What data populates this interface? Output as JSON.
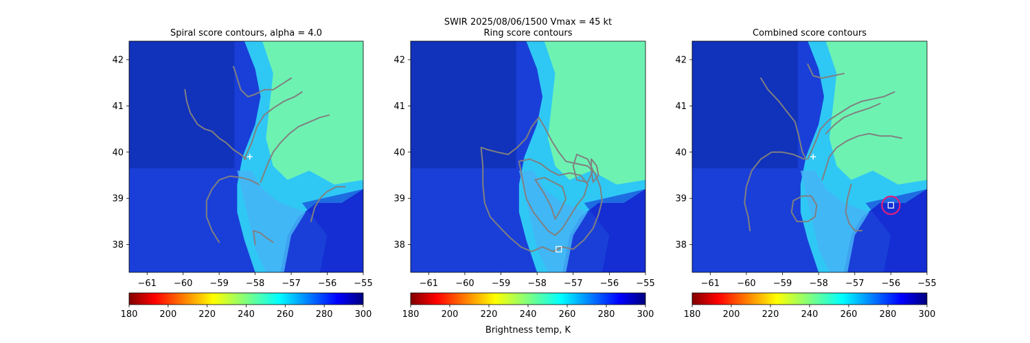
{
  "figure": {
    "suptitle_line1": "SWIR  2025/08/06/1500    Vmax = 45 kt",
    "colorbar_label": "Brightness temp, K"
  },
  "chart_data": [
    {
      "type": "heatmap",
      "title": "Spiral score contours, alpha =  4.0",
      "xlim": [
        -61.5,
        -55
      ],
      "ylim": [
        37.4,
        42.4
      ],
      "xticks": [
        -61,
        -60,
        -59,
        -58,
        -57,
        -56,
        -55
      ],
      "yticks": [
        38,
        39,
        40,
        41,
        42
      ],
      "grid": false,
      "colormap": "jet_reversed",
      "color_range": [
        180,
        300
      ],
      "colorbar_ticks": [
        180,
        200,
        220,
        240,
        260,
        280,
        300
      ],
      "center_marker": {
        "symbol": "plus",
        "color": "#ffffff",
        "lon": -58.15,
        "lat": 39.9
      },
      "contours_color": "#808080",
      "contours": [
        [
          [
            -59.95,
            41.35
          ],
          [
            -59.9,
            41.1
          ],
          [
            -59.8,
            40.85
          ],
          [
            -59.6,
            40.6
          ],
          [
            -59.4,
            40.5
          ],
          [
            -59.2,
            40.45
          ],
          [
            -59.0,
            40.3
          ],
          [
            -58.8,
            40.2
          ],
          [
            -58.6,
            40.05
          ],
          [
            -58.4,
            39.95
          ],
          [
            -58.25,
            39.85
          ]
        ],
        [
          [
            -58.6,
            41.85
          ],
          [
            -58.5,
            41.6
          ],
          [
            -58.4,
            41.35
          ],
          [
            -58.2,
            41.2
          ],
          [
            -58.0,
            41.25
          ],
          [
            -57.75,
            41.35
          ],
          [
            -57.5,
            41.35
          ],
          [
            -57.2,
            41.5
          ],
          [
            -57.0,
            41.6
          ]
        ],
        [
          [
            -58.3,
            39.85
          ],
          [
            -58.1,
            40.2
          ],
          [
            -57.95,
            40.55
          ],
          [
            -57.75,
            40.8
          ],
          [
            -57.5,
            40.95
          ],
          [
            -57.2,
            41.1
          ],
          [
            -56.9,
            41.2
          ],
          [
            -56.7,
            41.3
          ]
        ],
        [
          [
            -57.85,
            39.35
          ],
          [
            -57.65,
            39.75
          ],
          [
            -57.5,
            40.0
          ],
          [
            -57.3,
            40.2
          ],
          [
            -57.05,
            40.4
          ],
          [
            -56.8,
            40.55
          ],
          [
            -56.5,
            40.65
          ],
          [
            -56.2,
            40.75
          ],
          [
            -55.95,
            40.8
          ]
        ],
        [
          [
            -57.9,
            39.3
          ],
          [
            -58.15,
            39.4
          ],
          [
            -58.4,
            39.45
          ],
          [
            -58.7,
            39.48
          ],
          [
            -59.0,
            39.4
          ],
          [
            -59.2,
            39.2
          ],
          [
            -59.35,
            38.95
          ],
          [
            -59.35,
            38.6
          ],
          [
            -59.2,
            38.3
          ],
          [
            -59.0,
            38.05
          ]
        ],
        [
          [
            -56.45,
            38.5
          ],
          [
            -56.35,
            38.8
          ],
          [
            -56.2,
            39.0
          ],
          [
            -56.0,
            39.15
          ],
          [
            -55.75,
            39.25
          ],
          [
            -55.5,
            39.25
          ]
        ],
        [
          [
            -58.0,
            38.0
          ],
          [
            -58.05,
            38.3
          ],
          [
            -57.85,
            38.25
          ],
          [
            -57.7,
            38.15
          ],
          [
            -57.5,
            38.05
          ]
        ]
      ]
    },
    {
      "type": "heatmap",
      "title": "Ring score contours",
      "xlim": [
        -61.5,
        -55
      ],
      "ylim": [
        37.4,
        42.4
      ],
      "xticks": [
        -61,
        -60,
        -59,
        -58,
        -57,
        -56,
        -55
      ],
      "yticks": [
        38,
        39,
        40,
        41,
        42
      ],
      "grid": false,
      "colormap": "jet_reversed",
      "color_range": [
        180,
        300
      ],
      "colorbar_ticks": [
        180,
        200,
        220,
        240,
        260,
        280,
        300
      ],
      "center_marker": {
        "symbol": "square",
        "color": "#ffffff",
        "lon": -57.4,
        "lat": 37.9
      },
      "contours_color": "#808080",
      "contours": [
        [
          [
            -59.55,
            40.1
          ],
          [
            -59.5,
            39.7
          ],
          [
            -59.5,
            39.3
          ],
          [
            -59.45,
            38.9
          ],
          [
            -59.3,
            38.6
          ],
          [
            -59.0,
            38.35
          ],
          [
            -58.75,
            38.15
          ],
          [
            -58.45,
            37.95
          ],
          [
            -58.15,
            37.85
          ],
          [
            -57.85,
            37.95
          ],
          [
            -57.55,
            37.85
          ],
          [
            -57.3,
            37.95
          ],
          [
            -57.0,
            37.9
          ],
          [
            -56.7,
            38.1
          ],
          [
            -56.45,
            38.35
          ],
          [
            -56.3,
            38.65
          ],
          [
            -56.2,
            38.95
          ],
          [
            -56.25,
            39.25
          ],
          [
            -56.4,
            39.55
          ],
          [
            -56.6,
            39.7
          ],
          [
            -56.9,
            39.75
          ],
          [
            -57.2,
            39.8
          ],
          [
            -57.4,
            40.0
          ],
          [
            -57.6,
            40.25
          ],
          [
            -57.8,
            40.55
          ],
          [
            -57.95,
            40.75
          ],
          [
            -58.15,
            40.55
          ],
          [
            -58.3,
            40.3
          ],
          [
            -58.55,
            40.1
          ],
          [
            -58.8,
            39.95
          ],
          [
            -59.1,
            40.0
          ],
          [
            -59.35,
            40.05
          ],
          [
            -59.55,
            40.1
          ]
        ],
        [
          [
            -58.5,
            39.8
          ],
          [
            -58.4,
            39.4
          ],
          [
            -58.3,
            39.0
          ],
          [
            -58.1,
            38.7
          ],
          [
            -57.9,
            38.5
          ],
          [
            -57.7,
            38.3
          ],
          [
            -57.5,
            38.2
          ],
          [
            -57.3,
            38.35
          ],
          [
            -57.1,
            38.6
          ],
          [
            -56.9,
            38.85
          ],
          [
            -56.7,
            39.05
          ],
          [
            -56.6,
            39.3
          ],
          [
            -56.8,
            39.5
          ],
          [
            -57.1,
            39.55
          ],
          [
            -57.4,
            39.5
          ],
          [
            -57.65,
            39.6
          ],
          [
            -57.9,
            39.75
          ],
          [
            -58.2,
            39.85
          ],
          [
            -58.5,
            39.8
          ]
        ],
        [
          [
            -58.05,
            39.4
          ],
          [
            -57.8,
            39.1
          ],
          [
            -57.6,
            38.8
          ],
          [
            -57.5,
            38.55
          ],
          [
            -57.35,
            38.75
          ],
          [
            -57.2,
            39.0
          ],
          [
            -57.3,
            39.25
          ],
          [
            -57.55,
            39.35
          ],
          [
            -57.8,
            39.45
          ],
          [
            -58.05,
            39.4
          ]
        ],
        [
          [
            -56.9,
            39.95
          ],
          [
            -56.6,
            39.85
          ],
          [
            -56.45,
            39.6
          ],
          [
            -56.6,
            39.35
          ],
          [
            -56.9,
            39.4
          ],
          [
            -57.0,
            39.7
          ],
          [
            -56.9,
            39.95
          ]
        ],
        [
          [
            -56.5,
            39.85
          ],
          [
            -56.35,
            39.7
          ],
          [
            -56.3,
            39.5
          ],
          [
            -56.45,
            39.35
          ],
          [
            -56.5,
            39.6
          ],
          [
            -56.5,
            39.85
          ]
        ]
      ]
    },
    {
      "type": "heatmap",
      "title": "Combined score contours",
      "xlim": [
        -61.5,
        -55
      ],
      "ylim": [
        37.4,
        42.4
      ],
      "xticks": [
        -61,
        -60,
        -59,
        -58,
        -57,
        -56,
        -55
      ],
      "yticks": [
        38,
        39,
        40,
        41,
        42
      ],
      "grid": false,
      "colormap": "jet_reversed",
      "color_range": [
        180,
        300
      ],
      "colorbar_ticks": [
        180,
        200,
        220,
        240,
        260,
        280,
        300
      ],
      "center_marker": {
        "symbol": "plus",
        "color": "#ffffff",
        "lon": -58.15,
        "lat": 39.9
      },
      "highlight_marker": {
        "symbol": "square",
        "ring_color": "#e0207a",
        "color": "#ffffff",
        "lon": -56.0,
        "lat": 38.85
      },
      "contours_color": "#808080",
      "contours": [
        [
          [
            -59.6,
            41.6
          ],
          [
            -59.4,
            41.35
          ],
          [
            -59.1,
            41.1
          ],
          [
            -58.85,
            40.85
          ],
          [
            -58.65,
            40.65
          ],
          [
            -58.55,
            40.35
          ],
          [
            -58.45,
            40.0
          ],
          [
            -58.35,
            39.85
          ]
        ],
        [
          [
            -58.3,
            41.9
          ],
          [
            -58.15,
            41.65
          ],
          [
            -57.9,
            41.6
          ],
          [
            -57.6,
            41.65
          ],
          [
            -57.3,
            41.7
          ]
        ],
        [
          [
            -58.3,
            39.85
          ],
          [
            -58.1,
            40.2
          ],
          [
            -57.95,
            40.5
          ],
          [
            -57.7,
            40.7
          ],
          [
            -57.4,
            40.85
          ],
          [
            -57.1,
            41.0
          ],
          [
            -56.8,
            41.1
          ],
          [
            -56.5,
            41.15
          ],
          [
            -56.2,
            41.2
          ],
          [
            -55.9,
            41.3
          ]
        ],
        [
          [
            -57.8,
            40.4
          ],
          [
            -57.55,
            40.6
          ],
          [
            -57.3,
            40.75
          ],
          [
            -57.0,
            40.85
          ],
          [
            -56.6,
            40.95
          ],
          [
            -56.3,
            41.05
          ]
        ],
        [
          [
            -57.9,
            39.4
          ],
          [
            -57.7,
            39.9
          ],
          [
            -57.5,
            40.1
          ],
          [
            -57.2,
            40.25
          ],
          [
            -56.9,
            40.35
          ],
          [
            -56.6,
            40.4
          ],
          [
            -56.3,
            40.35
          ],
          [
            -56.0,
            40.35
          ],
          [
            -55.7,
            40.3
          ]
        ],
        [
          [
            -58.4,
            39.85
          ],
          [
            -58.7,
            39.95
          ],
          [
            -59.0,
            40.0
          ],
          [
            -59.3,
            40.0
          ],
          [
            -59.6,
            39.85
          ],
          [
            -59.85,
            39.6
          ],
          [
            -60.0,
            39.25
          ],
          [
            -60.05,
            38.9
          ],
          [
            -59.95,
            38.6
          ],
          [
            -59.9,
            38.3
          ]
        ],
        [
          [
            -58.7,
            38.95
          ],
          [
            -58.45,
            39.05
          ],
          [
            -58.2,
            39.05
          ],
          [
            -58.05,
            38.85
          ],
          [
            -58.1,
            38.6
          ],
          [
            -58.3,
            38.5
          ],
          [
            -58.6,
            38.5
          ],
          [
            -58.75,
            38.7
          ],
          [
            -58.7,
            38.95
          ]
        ],
        [
          [
            -57.1,
            39.3
          ],
          [
            -57.2,
            39.0
          ],
          [
            -57.25,
            38.7
          ],
          [
            -57.15,
            38.45
          ],
          [
            -57.0,
            38.3
          ],
          [
            -56.8,
            38.3
          ]
        ]
      ]
    }
  ]
}
